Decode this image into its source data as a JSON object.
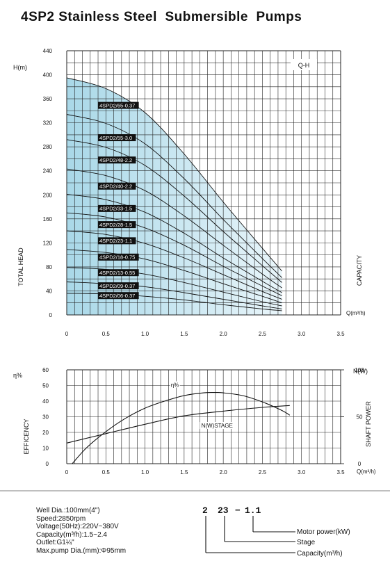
{
  "title": "4SP2 Stainless Steel  Submersible  Pumps",
  "chart_data": [
    {
      "type": "line",
      "legend_box": "Q-H",
      "ylabel_top": "H(m)",
      "ylabel_side": "TOTAL HEAD",
      "right_label": "CAPACITY",
      "xlabel": "Q(m³/h)",
      "xlim": [
        0,
        3.5
      ],
      "ylim": [
        0,
        440
      ],
      "x_ticks": [
        "0",
        "0.5",
        "1.0",
        "1.5",
        "2.0",
        "2.5",
        "3.0",
        "3.5"
      ],
      "y_ticks": [
        "0",
        "40",
        "80",
        "120",
        "160",
        "200",
        "240",
        "280",
        "320",
        "360",
        "400",
        "440"
      ],
      "grid": true,
      "series": [
        {
          "name": "4SPD2/65-0.37",
          "x": [
            0,
            0.5,
            1.0,
            1.5,
            2.0,
            2.5,
            2.75
          ],
          "y": [
            395,
            377,
            337,
            268,
            188,
            111,
            73
          ]
        },
        {
          "name": "4SPD2/55-3.0",
          "x": [
            0,
            0.5,
            1.0,
            1.5,
            2.0,
            2.5,
            2.75
          ],
          "y": [
            334,
            319,
            285,
            227,
            159,
            94,
            62
          ]
        },
        {
          "name": "4SPD2/48-2.2",
          "x": [
            0,
            0.5,
            1.0,
            1.5,
            2.0,
            2.5,
            2.75
          ],
          "y": [
            292,
            279,
            249,
            198,
            139,
            82,
            54
          ]
        },
        {
          "name": "4SPD2/40-2.2",
          "x": [
            0,
            0.5,
            1.0,
            1.5,
            2.0,
            2.5,
            2.75
          ],
          "y": [
            243,
            232,
            207,
            165,
            116,
            68,
            45
          ]
        },
        {
          "name": "4SPD2/33-1.5",
          "x": [
            0,
            0.5,
            1.0,
            1.5,
            2.0,
            2.5,
            2.75
          ],
          "y": [
            201,
            192,
            171,
            136,
            95,
            56,
            37
          ]
        },
        {
          "name": "4SPD2/28-1.5",
          "x": [
            0,
            0.5,
            1.0,
            1.5,
            2.0,
            2.5,
            2.75
          ],
          "y": [
            170,
            163,
            145,
            116,
            81,
            48,
            32
          ]
        },
        {
          "name": "4SPD2/23-1.1",
          "x": [
            0,
            0.5,
            1.0,
            1.5,
            2.0,
            2.5,
            2.75
          ],
          "y": [
            140,
            134,
            119,
            95,
            67,
            39,
            26
          ]
        },
        {
          "name": "4SPD2/18-0.75",
          "x": [
            0,
            0.5,
            1.0,
            1.5,
            2.0,
            2.5,
            2.75
          ],
          "y": [
            109,
            104,
            93,
            74,
            52,
            31,
            20
          ]
        },
        {
          "name": "4SPD2/13-0.55",
          "x": [
            0,
            0.5,
            1.0,
            1.5,
            2.0,
            2.5,
            2.75
          ],
          "y": [
            79,
            76,
            68,
            54,
            38,
            22,
            15
          ]
        },
        {
          "name": "4SPD2/09-0.37",
          "x": [
            0,
            0.5,
            1.0,
            1.5,
            2.0,
            2.5,
            2.75
          ],
          "y": [
            55,
            52,
            47,
            37,
            26,
            15,
            10
          ]
        },
        {
          "name": "4SPD2/06-0.37",
          "x": [
            0,
            0.5,
            1.0,
            1.5,
            2.0,
            2.5,
            2.75
          ],
          "y": [
            36,
            35,
            31,
            25,
            17,
            10,
            7
          ]
        }
      ]
    },
    {
      "type": "line",
      "ylabel_top": "η%",
      "ylabel_side": "EFFICENCY",
      "right_ylabel_top": "N(W)",
      "right_ylabel_side": "SHAFT POWER",
      "xlabel": "Q(m³/h)",
      "xlim": [
        0,
        3.5
      ],
      "ylim": [
        0,
        60
      ],
      "y2lim": [
        0,
        100
      ],
      "x_ticks": [
        "0",
        "0.5",
        "1.0",
        "1.5",
        "2.0",
        "2.5",
        "3.0",
        "3.5"
      ],
      "y_ticks": [
        "0",
        "10",
        "20",
        "30",
        "40",
        "50",
        "60"
      ],
      "y2_ticks": [
        "0",
        "50",
        "100"
      ],
      "grid": true,
      "series": [
        {
          "name": "η%",
          "axis": "left",
          "x": [
            0.07,
            0.25,
            0.5,
            0.75,
            1.0,
            1.25,
            1.5,
            1.75,
            1.9,
            2.0,
            2.25,
            2.5,
            2.75,
            2.85
          ],
          "y": [
            0,
            10,
            20.5,
            29,
            35.5,
            40,
            43.5,
            45.3,
            45.5,
            45.3,
            43.5,
            39.5,
            34,
            31
          ]
        },
        {
          "name": "N(W)STAGE",
          "axis": "right",
          "x": [
            0,
            0.5,
            1.0,
            1.5,
            2.0,
            2.5,
            2.85
          ],
          "y": [
            22,
            32,
            42,
            51,
            56,
            60,
            62
          ]
        }
      ]
    }
  ],
  "model_code": {
    "part1": "2",
    "part2": "23",
    "part3": "1.1",
    "dash": "−"
  },
  "code_legend": [
    "Motor power(kW)",
    "Stage",
    "Capacity(m³/h)"
  ],
  "specs": [
    "Well Dia.:100mm(4\")",
    "Speed:2850rpm",
    "Voltage(50Hz):220V~380V",
    "Capacity(m³/h):1.5~2.4",
    "Outlet:G1¼\"",
    "Max.pump Dia.(mm):Φ95mm"
  ]
}
